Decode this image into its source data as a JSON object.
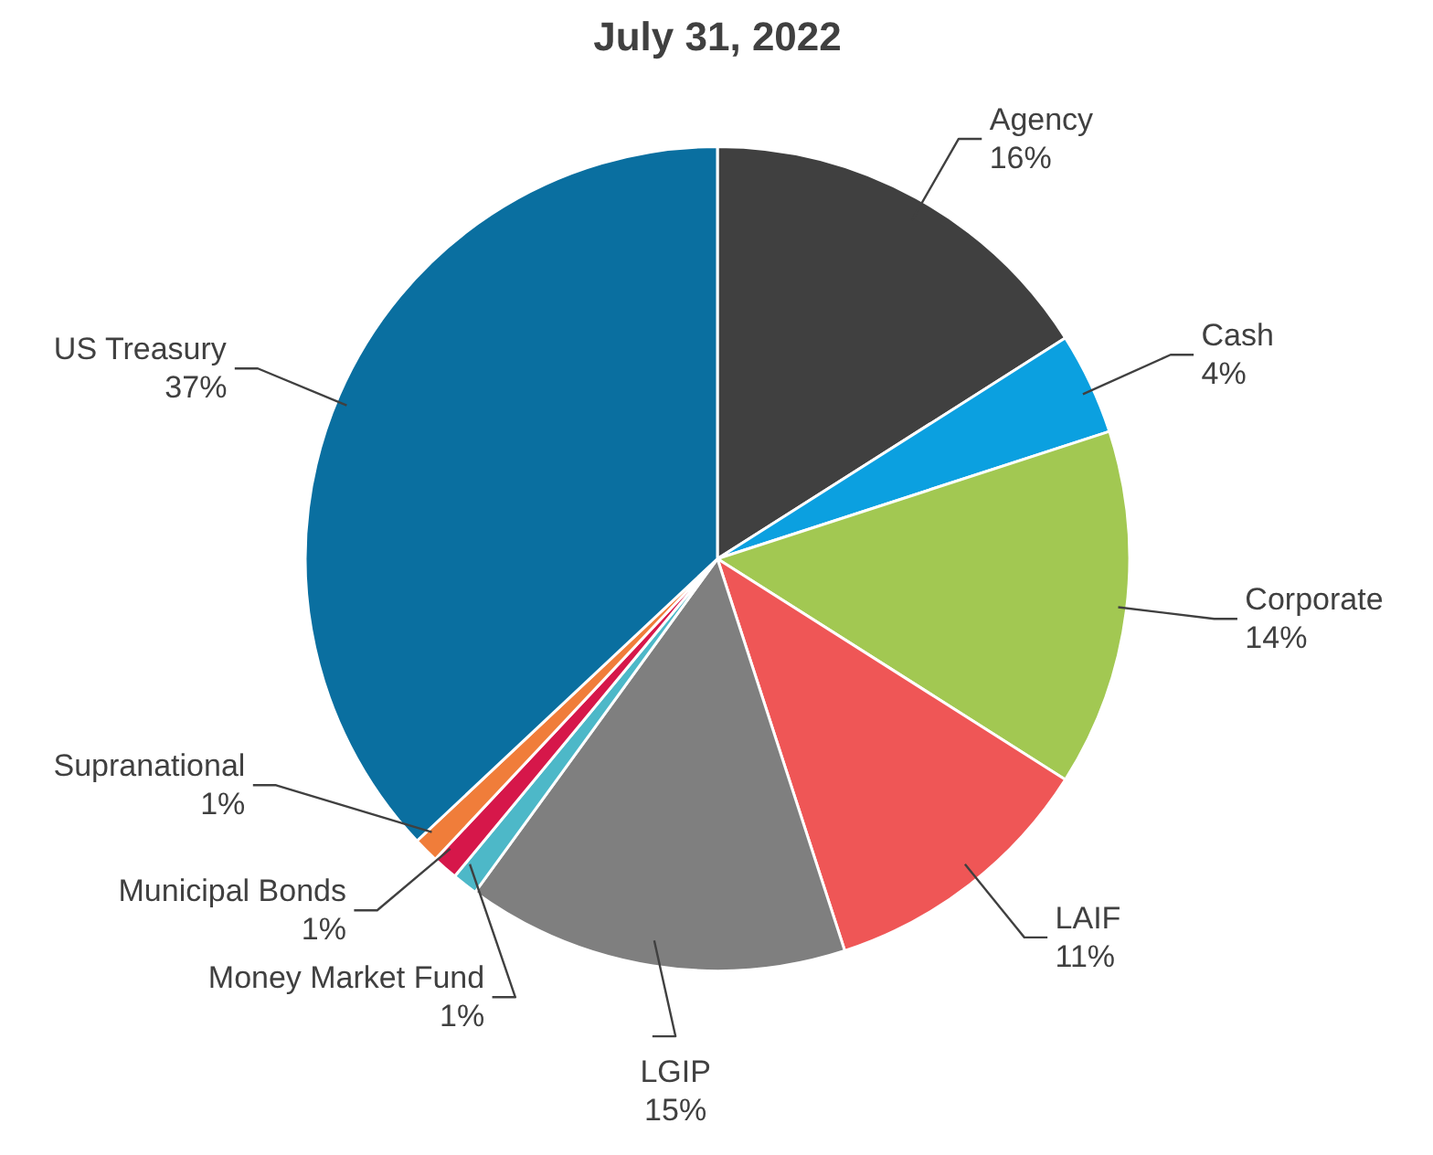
{
  "chart_data": {
    "type": "pie",
    "title": "July 31, 2022",
    "categories": [
      "Agency",
      "Cash",
      "Corporate",
      "LAIF",
      "LGIP",
      "Money Market Fund",
      "Municipal Bonds",
      "Supranational",
      "US Treasury"
    ],
    "values": [
      16,
      4,
      14,
      11,
      15,
      1,
      1,
      1,
      37
    ],
    "value_labels": [
      "16%",
      "4%",
      "14%",
      "11%",
      "15%",
      "1%",
      "1%",
      "1%",
      "37%"
    ],
    "colors": [
      "#404040",
      "#0ba0e0",
      "#a2c852",
      "#ef5656",
      "#7f7f7f",
      "#4db8c8",
      "#d6174a",
      "#f07d3a",
      "#0a6fa0"
    ],
    "legend": false
  }
}
